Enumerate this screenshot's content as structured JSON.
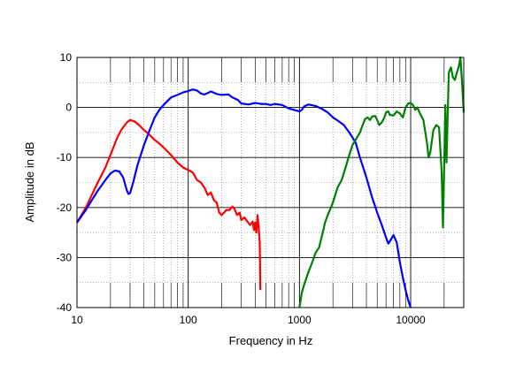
{
  "chart_data": {
    "type": "line",
    "title": "",
    "xlabel": "Frequency in Hz",
    "ylabel": "Amplitude in dB",
    "xscale": "log",
    "xlim": [
      10,
      30000
    ],
    "ylim": [
      -40,
      10
    ],
    "grid": true,
    "legend": "none",
    "x_ticks": [
      {
        "value": 10,
        "label": "10"
      },
      {
        "value": 100,
        "label": "100"
      },
      {
        "value": 1000,
        "label": "1000"
      },
      {
        "value": 10000,
        "label": "10000"
      }
    ],
    "y_ticks": [
      {
        "value": 10,
        "label": "10"
      },
      {
        "value": 0,
        "label": "0"
      },
      {
        "value": -10,
        "label": "-10"
      },
      {
        "value": -20,
        "label": "-20"
      },
      {
        "value": -30,
        "label": "-30"
      },
      {
        "value": -40,
        "label": "-40"
      }
    ],
    "series": [
      {
        "color": "#ff0000",
        "points": [
          [
            10,
            -23
          ],
          [
            12,
            -20
          ],
          [
            15,
            -15.5
          ],
          [
            18,
            -12
          ],
          [
            20,
            -9.5
          ],
          [
            23,
            -6
          ],
          [
            25,
            -4.5
          ],
          [
            28,
            -3
          ],
          [
            30,
            -2.5
          ],
          [
            33,
            -2.8
          ],
          [
            36,
            -3.5
          ],
          [
            40,
            -4.5
          ],
          [
            45,
            -5.5
          ],
          [
            50,
            -6.5
          ],
          [
            55,
            -7.2
          ],
          [
            60,
            -8
          ],
          [
            70,
            -9.5
          ],
          [
            80,
            -11
          ],
          [
            90,
            -12
          ],
          [
            100,
            -12.5
          ],
          [
            110,
            -13
          ],
          [
            120,
            -14.5
          ],
          [
            130,
            -15
          ],
          [
            140,
            -16
          ],
          [
            150,
            -17.5
          ],
          [
            160,
            -17
          ],
          [
            170,
            -18.5
          ],
          [
            180,
            -19
          ],
          [
            190,
            -21
          ],
          [
            200,
            -21.5
          ],
          [
            210,
            -21
          ],
          [
            220,
            -20.5
          ],
          [
            235,
            -20.5
          ],
          [
            250,
            -19.8
          ],
          [
            260,
            -20.2
          ],
          [
            275,
            -21.5
          ],
          [
            290,
            -21
          ],
          [
            300,
            -22.5
          ],
          [
            320,
            -22
          ],
          [
            340,
            -22.8
          ],
          [
            360,
            -23.5
          ],
          [
            380,
            -22.8
          ],
          [
            390,
            -24.5
          ],
          [
            400,
            -23
          ],
          [
            410,
            -25
          ],
          [
            420,
            -21.5
          ],
          [
            430,
            -24
          ],
          [
            440,
            -27
          ],
          [
            445,
            -36.5
          ]
        ]
      },
      {
        "color": "#0000ff",
        "points": [
          [
            10,
            -23
          ],
          [
            12,
            -20.5
          ],
          [
            15,
            -17
          ],
          [
            18,
            -14.5
          ],
          [
            20,
            -13.2
          ],
          [
            22,
            -12.6
          ],
          [
            24,
            -12.8
          ],
          [
            26,
            -14
          ],
          [
            28,
            -16.5
          ],
          [
            29,
            -17.3
          ],
          [
            30,
            -17.1
          ],
          [
            32,
            -15
          ],
          [
            35,
            -11.5
          ],
          [
            40,
            -7.5
          ],
          [
            45,
            -4.5
          ],
          [
            50,
            -2
          ],
          [
            55,
            -0.5
          ],
          [
            60,
            0.5
          ],
          [
            70,
            2
          ],
          [
            80,
            2.5
          ],
          [
            90,
            3
          ],
          [
            100,
            3.3
          ],
          [
            110,
            3.6
          ],
          [
            120,
            3.4
          ],
          [
            130,
            2.8
          ],
          [
            140,
            2.6
          ],
          [
            150,
            2.9
          ],
          [
            160,
            3.2
          ],
          [
            180,
            2.7
          ],
          [
            200,
            2.5
          ],
          [
            230,
            2.6
          ],
          [
            250,
            2
          ],
          [
            280,
            1.5
          ],
          [
            300,
            0.8
          ],
          [
            350,
            0.6
          ],
          [
            400,
            0.9
          ],
          [
            450,
            0.7
          ],
          [
            500,
            0.7
          ],
          [
            550,
            0.5
          ],
          [
            600,
            0.7
          ],
          [
            700,
            0.5
          ],
          [
            800,
            -0.2
          ],
          [
            900,
            -0.5
          ],
          [
            1000,
            -0.8
          ],
          [
            1050,
            -0.5
          ],
          [
            1100,
            0.2
          ],
          [
            1200,
            0.6
          ],
          [
            1400,
            0.3
          ],
          [
            1600,
            -0.3
          ],
          [
            1800,
            -1
          ],
          [
            2000,
            -2
          ],
          [
            2200,
            -2.6
          ],
          [
            2500,
            -3.5
          ],
          [
            2800,
            -5
          ],
          [
            3000,
            -6
          ],
          [
            3200,
            -7
          ],
          [
            3500,
            -10
          ],
          [
            4000,
            -14
          ],
          [
            4500,
            -18
          ],
          [
            5000,
            -21
          ],
          [
            5500,
            -23.5
          ],
          [
            6000,
            -26
          ],
          [
            6300,
            -27.2
          ],
          [
            6600,
            -26.5
          ],
          [
            7000,
            -25.5
          ],
          [
            7500,
            -27
          ],
          [
            8000,
            -31
          ],
          [
            8500,
            -34
          ],
          [
            9000,
            -36.5
          ],
          [
            9500,
            -38.5
          ],
          [
            10000,
            -40
          ]
        ]
      },
      {
        "color": "#008000",
        "points": [
          [
            1000,
            -40
          ],
          [
            1050,
            -37
          ],
          [
            1100,
            -35.5
          ],
          [
            1200,
            -33
          ],
          [
            1300,
            -31
          ],
          [
            1400,
            -29
          ],
          [
            1500,
            -28
          ],
          [
            1600,
            -25.5
          ],
          [
            1700,
            -23
          ],
          [
            1800,
            -21.5
          ],
          [
            2000,
            -19
          ],
          [
            2200,
            -16
          ],
          [
            2400,
            -14.5
          ],
          [
            2600,
            -12
          ],
          [
            2800,
            -9.5
          ],
          [
            3000,
            -7.5
          ],
          [
            3200,
            -6.5
          ],
          [
            3500,
            -5
          ],
          [
            3700,
            -3.5
          ],
          [
            3900,
            -2.3
          ],
          [
            4100,
            -2
          ],
          [
            4300,
            -2.5
          ],
          [
            4500,
            -1.8
          ],
          [
            4800,
            -1.7
          ],
          [
            5000,
            -2.5
          ],
          [
            5200,
            -3.5
          ],
          [
            5500,
            -3
          ],
          [
            5800,
            -2
          ],
          [
            6000,
            -1
          ],
          [
            6300,
            -0.8
          ],
          [
            6500,
            -1.5
          ],
          [
            7000,
            -1.6
          ],
          [
            7500,
            -0.8
          ],
          [
            8000,
            -1.2
          ],
          [
            8500,
            -2
          ],
          [
            9000,
            0
          ],
          [
            9500,
            0.8
          ],
          [
            10000,
            0.9
          ],
          [
            10500,
            0.5
          ],
          [
            11000,
            -0.5
          ],
          [
            11500,
            0
          ],
          [
            12000,
            -1
          ],
          [
            13000,
            -2.5
          ],
          [
            14000,
            -7
          ],
          [
            14500,
            -10
          ],
          [
            15000,
            -9
          ],
          [
            16000,
            -4.5
          ],
          [
            17000,
            -3.5
          ],
          [
            18000,
            -4
          ],
          [
            19000,
            -13
          ],
          [
            19500,
            -24
          ],
          [
            20000,
            -12
          ],
          [
            20500,
            0.5
          ],
          [
            21000,
            -11
          ],
          [
            22000,
            7
          ],
          [
            23000,
            8
          ],
          [
            24000,
            6
          ],
          [
            25000,
            5.5
          ],
          [
            26000,
            7
          ],
          [
            27000,
            8
          ],
          [
            28000,
            10
          ],
          [
            29000,
            5
          ],
          [
            30000,
            -1
          ]
        ]
      }
    ]
  }
}
